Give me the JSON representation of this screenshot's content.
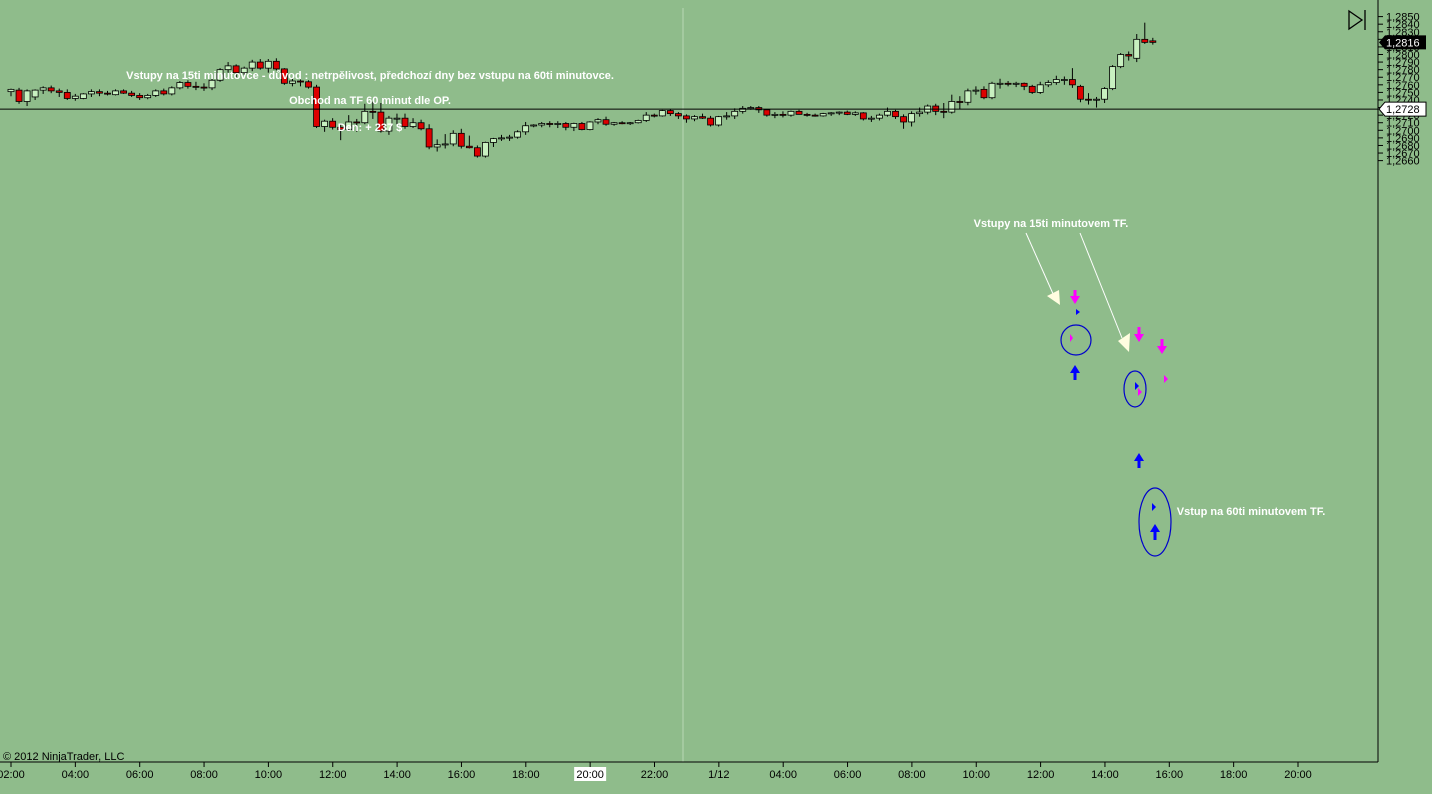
{
  "annotations": {
    "line1": "Vstupy na 15ti minutovce - důvod : netrpělivost, předchozí dny bez vstupu na 60ti minutovce.",
    "line2": "Obchod na TF 60 minut dle OP.",
    "line3": "Den: + 237 $",
    "label_15": "Vstupy na 15ti minutovem TF.",
    "label_60": "Vstup na 60ti minutovem TF."
  },
  "copyright": "© 2012 NinjaTrader, LLC",
  "price_axis": {
    "ticks": [
      "1,2660",
      "1,2670",
      "1,2680",
      "1,2690",
      "1,2700",
      "1,2710",
      "1,2720",
      "1,2730",
      "1,2740",
      "1,2750",
      "1,2760",
      "1,2770",
      "1,2780",
      "1,2790",
      "1,2800",
      "1,2810",
      "1,2820",
      "1,2830",
      "1,2840",
      "1,2850"
    ],
    "last_price": "1,2816",
    "hline_price": "1,2728"
  },
  "time_axis": {
    "labels": [
      "02:00",
      "04:00",
      "06:00",
      "08:00",
      "10:00",
      "12:00",
      "14:00",
      "16:00",
      "18:00",
      "20:00",
      "22:00",
      "1/12",
      "04:00",
      "06:00",
      "08:00",
      "10:00",
      "12:00",
      "14:00",
      "16:00",
      "18:00",
      "20:00"
    ],
    "highlighted_label": "20:00"
  },
  "colors": {
    "background": "#8fbc8b",
    "up_candle": "#c8f0c0",
    "down_candle": "#dd0000",
    "wick": "#000000",
    "entry_up_arrow": "#0000ff",
    "entry_down_arrow": "#ff00ff",
    "ellipse": "#0000cc",
    "annotation_text": "#ffffff"
  },
  "chart_data": {
    "type": "candlestick",
    "timeframe": "15 min",
    "y_range": [
      1.2655,
      1.2855
    ],
    "candles": [
      {
        "o": 1.2751,
        "h": 1.2755,
        "l": 1.2745,
        "c": 1.2754
      },
      {
        "o": 1.2753,
        "h": 1.2756,
        "l": 1.2735,
        "c": 1.2738
      },
      {
        "o": 1.2738,
        "h": 1.2754,
        "l": 1.2732,
        "c": 1.2752
      },
      {
        "o": 1.2744,
        "h": 1.2754,
        "l": 1.274,
        "c": 1.2753
      },
      {
        "o": 1.2753,
        "h": 1.2758,
        "l": 1.2748,
        "c": 1.2756
      },
      {
        "o": 1.2756,
        "h": 1.2759,
        "l": 1.2749,
        "c": 1.2752
      },
      {
        "o": 1.2752,
        "h": 1.2755,
        "l": 1.2744,
        "c": 1.275
      },
      {
        "o": 1.275,
        "h": 1.2754,
        "l": 1.274,
        "c": 1.2742
      },
      {
        "o": 1.2742,
        "h": 1.2748,
        "l": 1.2739,
        "c": 1.2745
      },
      {
        "o": 1.2742,
        "h": 1.2749,
        "l": 1.2741,
        "c": 1.2748
      },
      {
        "o": 1.2748,
        "h": 1.2754,
        "l": 1.2744,
        "c": 1.2751
      },
      {
        "o": 1.2751,
        "h": 1.2754,
        "l": 1.2745,
        "c": 1.2749
      },
      {
        "o": 1.2749,
        "h": 1.2752,
        "l": 1.2746,
        "c": 1.2748
      },
      {
        "o": 1.2747,
        "h": 1.2754,
        "l": 1.2746,
        "c": 1.2752
      },
      {
        "o": 1.2752,
        "h": 1.2754,
        "l": 1.2748,
        "c": 1.2749
      },
      {
        "o": 1.2749,
        "h": 1.2752,
        "l": 1.2744,
        "c": 1.2746
      },
      {
        "o": 1.2746,
        "h": 1.2749,
        "l": 1.274,
        "c": 1.2743
      },
      {
        "o": 1.2743,
        "h": 1.2748,
        "l": 1.2741,
        "c": 1.2746
      },
      {
        "o": 1.2746,
        "h": 1.2754,
        "l": 1.2744,
        "c": 1.2752
      },
      {
        "o": 1.2752,
        "h": 1.2755,
        "l": 1.2746,
        "c": 1.2748
      },
      {
        "o": 1.2748,
        "h": 1.2758,
        "l": 1.2746,
        "c": 1.2756
      },
      {
        "o": 1.2756,
        "h": 1.2765,
        "l": 1.2754,
        "c": 1.2763
      },
      {
        "o": 1.2763,
        "h": 1.2766,
        "l": 1.2755,
        "c": 1.2758
      },
      {
        "o": 1.2758,
        "h": 1.2764,
        "l": 1.2753,
        "c": 1.2757
      },
      {
        "o": 1.2757,
        "h": 1.2762,
        "l": 1.2752,
        "c": 1.2756
      },
      {
        "o": 1.2756,
        "h": 1.2768,
        "l": 1.2753,
        "c": 1.2766
      },
      {
        "o": 1.2766,
        "h": 1.2782,
        "l": 1.2764,
        "c": 1.278
      },
      {
        "o": 1.278,
        "h": 1.279,
        "l": 1.2776,
        "c": 1.2785
      },
      {
        "o": 1.2785,
        "h": 1.2787,
        "l": 1.277,
        "c": 1.2776
      },
      {
        "o": 1.2776,
        "h": 1.2784,
        "l": 1.2773,
        "c": 1.2782
      },
      {
        "o": 1.2782,
        "h": 1.2793,
        "l": 1.2778,
        "c": 1.279
      },
      {
        "o": 1.279,
        "h": 1.2794,
        "l": 1.278,
        "c": 1.2782
      },
      {
        "o": 1.2782,
        "h": 1.2794,
        "l": 1.2776,
        "c": 1.2791
      },
      {
        "o": 1.2791,
        "h": 1.2795,
        "l": 1.2779,
        "c": 1.2781
      },
      {
        "o": 1.2781,
        "h": 1.2782,
        "l": 1.276,
        "c": 1.2762
      },
      {
        "o": 1.2762,
        "h": 1.2768,
        "l": 1.2758,
        "c": 1.2765
      },
      {
        "o": 1.2765,
        "h": 1.2767,
        "l": 1.2758,
        "c": 1.2764
      },
      {
        "o": 1.2764,
        "h": 1.2766,
        "l": 1.2755,
        "c": 1.2757
      },
      {
        "o": 1.2757,
        "h": 1.276,
        "l": 1.2703,
        "c": 1.2705
      },
      {
        "o": 1.2705,
        "h": 1.2714,
        "l": 1.2698,
        "c": 1.2712
      },
      {
        "o": 1.2712,
        "h": 1.2716,
        "l": 1.2701,
        "c": 1.2704
      },
      {
        "o": 1.2704,
        "h": 1.2708,
        "l": 1.2687,
        "c": 1.2701
      },
      {
        "o": 1.2701,
        "h": 1.272,
        "l": 1.2699,
        "c": 1.2711
      },
      {
        "o": 1.2711,
        "h": 1.2715,
        "l": 1.2698,
        "c": 1.271
      },
      {
        "o": 1.271,
        "h": 1.2735,
        "l": 1.2708,
        "c": 1.2725
      },
      {
        "o": 1.2725,
        "h": 1.2738,
        "l": 1.2715,
        "c": 1.2724
      },
      {
        "o": 1.2724,
        "h": 1.2736,
        "l": 1.2697,
        "c": 1.2699
      },
      {
        "o": 1.2699,
        "h": 1.2719,
        "l": 1.2694,
        "c": 1.2716
      },
      {
        "o": 1.2716,
        "h": 1.2722,
        "l": 1.2708,
        "c": 1.2716
      },
      {
        "o": 1.2716,
        "h": 1.2722,
        "l": 1.2702,
        "c": 1.2705
      },
      {
        "o": 1.2705,
        "h": 1.2716,
        "l": 1.2703,
        "c": 1.271
      },
      {
        "o": 1.271,
        "h": 1.2714,
        "l": 1.27,
        "c": 1.2702
      },
      {
        "o": 1.2702,
        "h": 1.2708,
        "l": 1.2675,
        "c": 1.2678
      },
      {
        "o": 1.2678,
        "h": 1.2688,
        "l": 1.2672,
        "c": 1.2681
      },
      {
        "o": 1.2681,
        "h": 1.2695,
        "l": 1.2676,
        "c": 1.2682
      },
      {
        "o": 1.2682,
        "h": 1.27,
        "l": 1.2679,
        "c": 1.2696
      },
      {
        "o": 1.2696,
        "h": 1.2702,
        "l": 1.2676,
        "c": 1.2679
      },
      {
        "o": 1.2679,
        "h": 1.2693,
        "l": 1.2676,
        "c": 1.2677
      },
      {
        "o": 1.2677,
        "h": 1.268,
        "l": 1.2664,
        "c": 1.2666
      },
      {
        "o": 1.2666,
        "h": 1.2685,
        "l": 1.2664,
        "c": 1.2684
      },
      {
        "o": 1.2684,
        "h": 1.269,
        "l": 1.2678,
        "c": 1.2689
      },
      {
        "o": 1.2689,
        "h": 1.2694,
        "l": 1.2686,
        "c": 1.269
      },
      {
        "o": 1.269,
        "h": 1.2694,
        "l": 1.2686,
        "c": 1.2691
      },
      {
        "o": 1.2691,
        "h": 1.27,
        "l": 1.2689,
        "c": 1.2698
      },
      {
        "o": 1.2698,
        "h": 1.2711,
        "l": 1.2694,
        "c": 1.2706
      },
      {
        "o": 1.2706,
        "h": 1.2708,
        "l": 1.2704,
        "c": 1.2707
      },
      {
        "o": 1.2707,
        "h": 1.2711,
        "l": 1.2704,
        "c": 1.2709
      },
      {
        "o": 1.2709,
        "h": 1.2712,
        "l": 1.2704,
        "c": 1.2708
      },
      {
        "o": 1.2708,
        "h": 1.2712,
        "l": 1.2703,
        "c": 1.2709
      },
      {
        "o": 1.2709,
        "h": 1.2711,
        "l": 1.27,
        "c": 1.2704
      },
      {
        "o": 1.2704,
        "h": 1.271,
        "l": 1.2699,
        "c": 1.2709
      },
      {
        "o": 1.2709,
        "h": 1.2711,
        "l": 1.27,
        "c": 1.2701
      },
      {
        "o": 1.2701,
        "h": 1.2712,
        "l": 1.27,
        "c": 1.2711
      },
      {
        "o": 1.2711,
        "h": 1.2716,
        "l": 1.2708,
        "c": 1.2714
      },
      {
        "o": 1.2714,
        "h": 1.2718,
        "l": 1.2706,
        "c": 1.2708
      },
      {
        "o": 1.2708,
        "h": 1.2711,
        "l": 1.2706,
        "c": 1.271
      },
      {
        "o": 1.271,
        "h": 1.2712,
        "l": 1.2708,
        "c": 1.2709
      },
      {
        "o": 1.2709,
        "h": 1.2711,
        "l": 1.2707,
        "c": 1.271
      },
      {
        "o": 1.271,
        "h": 1.2714,
        "l": 1.2709,
        "c": 1.2713
      },
      {
        "o": 1.2713,
        "h": 1.2724,
        "l": 1.2711,
        "c": 1.272
      },
      {
        "o": 1.272,
        "h": 1.2722,
        "l": 1.2717,
        "c": 1.2719
      },
      {
        "o": 1.2719,
        "h": 1.2727,
        "l": 1.2718,
        "c": 1.2726
      },
      {
        "o": 1.2726,
        "h": 1.2728,
        "l": 1.2719,
        "c": 1.2722
      },
      {
        "o": 1.2722,
        "h": 1.2724,
        "l": 1.2715,
        "c": 1.2719
      },
      {
        "o": 1.2719,
        "h": 1.2721,
        "l": 1.271,
        "c": 1.2715
      },
      {
        "o": 1.2715,
        "h": 1.272,
        "l": 1.2712,
        "c": 1.2718
      },
      {
        "o": 1.2718,
        "h": 1.2722,
        "l": 1.2715,
        "c": 1.2716
      },
      {
        "o": 1.2716,
        "h": 1.2719,
        "l": 1.2705,
        "c": 1.2707
      },
      {
        "o": 1.2707,
        "h": 1.2719,
        "l": 1.2705,
        "c": 1.2718
      },
      {
        "o": 1.2718,
        "h": 1.2724,
        "l": 1.2714,
        "c": 1.2719
      },
      {
        "o": 1.2719,
        "h": 1.2729,
        "l": 1.2715,
        "c": 1.2725
      },
      {
        "o": 1.2725,
        "h": 1.2732,
        "l": 1.2722,
        "c": 1.2729
      },
      {
        "o": 1.2729,
        "h": 1.2732,
        "l": 1.2727,
        "c": 1.273
      },
      {
        "o": 1.273,
        "h": 1.2732,
        "l": 1.2723,
        "c": 1.2727
      },
      {
        "o": 1.2727,
        "h": 1.2728,
        "l": 1.2718,
        "c": 1.272
      },
      {
        "o": 1.272,
        "h": 1.2724,
        "l": 1.2716,
        "c": 1.2721
      },
      {
        "o": 1.2721,
        "h": 1.2725,
        "l": 1.2717,
        "c": 1.272
      },
      {
        "o": 1.272,
        "h": 1.2726,
        "l": 1.2718,
        "c": 1.2725
      },
      {
        "o": 1.2725,
        "h": 1.2727,
        "l": 1.2721,
        "c": 1.2721
      },
      {
        "o": 1.2721,
        "h": 1.2723,
        "l": 1.2718,
        "c": 1.272
      },
      {
        "o": 1.272,
        "h": 1.2722,
        "l": 1.2718,
        "c": 1.2719
      },
      {
        "o": 1.2719,
        "h": 1.2723,
        "l": 1.2718,
        "c": 1.2722
      },
      {
        "o": 1.2722,
        "h": 1.2724,
        "l": 1.2719,
        "c": 1.2723
      },
      {
        "o": 1.2723,
        "h": 1.2725,
        "l": 1.272,
        "c": 1.2724
      },
      {
        "o": 1.2724,
        "h": 1.2726,
        "l": 1.272,
        "c": 1.2721
      },
      {
        "o": 1.2721,
        "h": 1.2725,
        "l": 1.2719,
        "c": 1.2723
      },
      {
        "o": 1.2723,
        "h": 1.2724,
        "l": 1.2713,
        "c": 1.2715
      },
      {
        "o": 1.2715,
        "h": 1.2719,
        "l": 1.2711,
        "c": 1.2716
      },
      {
        "o": 1.2716,
        "h": 1.2722,
        "l": 1.2713,
        "c": 1.272
      },
      {
        "o": 1.272,
        "h": 1.273,
        "l": 1.2718,
        "c": 1.2725
      },
      {
        "o": 1.2725,
        "h": 1.2727,
        "l": 1.2715,
        "c": 1.2718
      },
      {
        "o": 1.2718,
        "h": 1.2721,
        "l": 1.2702,
        "c": 1.2711
      },
      {
        "o": 1.2711,
        "h": 1.2725,
        "l": 1.2705,
        "c": 1.2722
      },
      {
        "o": 1.2722,
        "h": 1.273,
        "l": 1.2718,
        "c": 1.2724
      },
      {
        "o": 1.2724,
        "h": 1.2734,
        "l": 1.2721,
        "c": 1.2732
      },
      {
        "o": 1.2732,
        "h": 1.2735,
        "l": 1.272,
        "c": 1.2725
      },
      {
        "o": 1.2725,
        "h": 1.2736,
        "l": 1.2716,
        "c": 1.2724
      },
      {
        "o": 1.2724,
        "h": 1.2747,
        "l": 1.2722,
        "c": 1.2738
      },
      {
        "o": 1.2738,
        "h": 1.2745,
        "l": 1.2728,
        "c": 1.2737
      },
      {
        "o": 1.2737,
        "h": 1.2755,
        "l": 1.2733,
        "c": 1.2752
      },
      {
        "o": 1.2752,
        "h": 1.2758,
        "l": 1.2747,
        "c": 1.2753
      },
      {
        "o": 1.2754,
        "h": 1.2758,
        "l": 1.2741,
        "c": 1.2743
      },
      {
        "o": 1.2743,
        "h": 1.2764,
        "l": 1.2741,
        "c": 1.2762
      },
      {
        "o": 1.2762,
        "h": 1.2768,
        "l": 1.2755,
        "c": 1.2762
      },
      {
        "o": 1.2762,
        "h": 1.2765,
        "l": 1.2758,
        "c": 1.2761
      },
      {
        "o": 1.2761,
        "h": 1.2764,
        "l": 1.2757,
        "c": 1.2762
      },
      {
        "o": 1.2762,
        "h": 1.2763,
        "l": 1.2753,
        "c": 1.2758
      },
      {
        "o": 1.2758,
        "h": 1.276,
        "l": 1.2748,
        "c": 1.275
      },
      {
        "o": 1.275,
        "h": 1.2764,
        "l": 1.2748,
        "c": 1.276
      },
      {
        "o": 1.276,
        "h": 1.2766,
        "l": 1.2757,
        "c": 1.2763
      },
      {
        "o": 1.2763,
        "h": 1.2772,
        "l": 1.276,
        "c": 1.2767
      },
      {
        "o": 1.2767,
        "h": 1.2771,
        "l": 1.276,
        "c": 1.2767
      },
      {
        "o": 1.2767,
        "h": 1.2782,
        "l": 1.2756,
        "c": 1.276
      },
      {
        "o": 1.2758,
        "h": 1.276,
        "l": 1.2737,
        "c": 1.2741
      },
      {
        "o": 1.2741,
        "h": 1.2749,
        "l": 1.2734,
        "c": 1.274
      },
      {
        "o": 1.274,
        "h": 1.2744,
        "l": 1.273,
        "c": 1.2741
      },
      {
        "o": 1.2741,
        "h": 1.2757,
        "l": 1.2736,
        "c": 1.2755
      },
      {
        "o": 1.2755,
        "h": 1.2786,
        "l": 1.2753,
        "c": 1.2784
      },
      {
        "o": 1.2784,
        "h": 1.2802,
        "l": 1.2782,
        "c": 1.28
      },
      {
        "o": 1.28,
        "h": 1.2804,
        "l": 1.2792,
        "c": 1.2798
      },
      {
        "o": 1.2795,
        "h": 1.2827,
        "l": 1.279,
        "c": 1.282
      },
      {
        "o": 1.282,
        "h": 1.2842,
        "l": 1.2814,
        "c": 1.2816
      },
      {
        "o": 1.2818,
        "h": 1.2822,
        "l": 1.2813,
        "c": 1.2816
      }
    ]
  }
}
